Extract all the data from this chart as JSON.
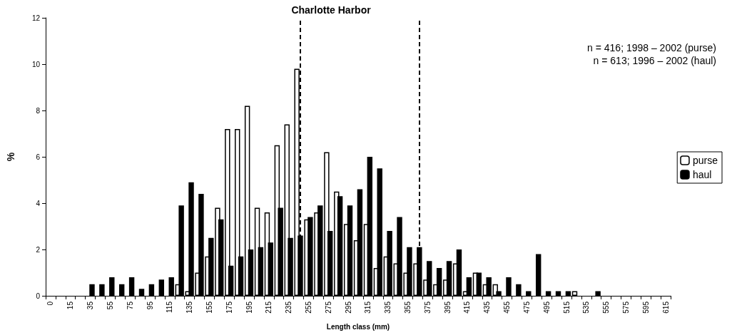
{
  "chart_data": {
    "type": "bar",
    "title": "Charlotte Harbor",
    "xlabel": "Length class (mm)",
    "ylabel": "%",
    "annotations": [
      "n = 416; 1998 – 2002 (purse)",
      "n = 613; 1996 – 2002 (haul)"
    ],
    "categories": [
      "0",
      null,
      "15",
      null,
      "35",
      null,
      "55",
      null,
      "75",
      null,
      "95",
      null,
      "115",
      null,
      "135",
      null,
      "155",
      null,
      "175",
      null,
      "195",
      null,
      "215",
      null,
      "235",
      null,
      "255",
      null,
      "275",
      null,
      "295",
      null,
      "315",
      null,
      "335",
      null,
      "355",
      null,
      "375",
      null,
      "395",
      null,
      "415",
      null,
      "435",
      null,
      "455",
      null,
      "475",
      null,
      "495",
      null,
      "515",
      null,
      "535",
      null,
      "555",
      null,
      "575",
      null,
      "595",
      null,
      "615"
    ],
    "series": [
      {
        "name": "purse",
        "color": "#ffffff",
        "values": [
          0,
          0,
          0,
          0,
          0,
          0,
          0,
          0,
          0,
          0,
          0,
          0,
          0,
          0.5,
          0.2,
          1.0,
          1.7,
          3.8,
          7.2,
          7.2,
          8.2,
          3.8,
          3.6,
          6.5,
          7.4,
          9.8,
          3.3,
          3.6,
          6.2,
          4.5,
          3.1,
          2.4,
          3.1,
          1.2,
          1.7,
          1.4,
          1.0,
          1.4,
          0.7,
          0.5,
          0.7,
          1.4,
          0.2,
          1.0,
          0.5,
          0.5,
          0,
          0,
          0,
          0,
          0,
          0,
          0,
          0.2,
          0,
          0,
          0,
          0,
          0,
          0,
          0,
          0,
          0
        ]
      },
      {
        "name": "haul",
        "color": "#000000",
        "values": [
          0,
          0,
          0,
          0,
          0.5,
          0.5,
          0.8,
          0.5,
          0.8,
          0.3,
          0.5,
          0.7,
          0.8,
          3.9,
          4.9,
          4.4,
          2.5,
          3.3,
          1.3,
          1.7,
          2.0,
          2.1,
          2.3,
          3.8,
          2.5,
          2.6,
          3.4,
          3.9,
          2.8,
          4.3,
          3.9,
          4.6,
          6.0,
          5.5,
          2.8,
          3.4,
          2.1,
          2.1,
          1.5,
          1.2,
          1.5,
          2.0,
          0.8,
          1.0,
          0.8,
          0.2,
          0.8,
          0.5,
          0.2,
          1.8,
          0.2,
          0.2,
          0.2,
          0,
          0,
          0.2,
          0,
          0,
          0,
          0,
          0,
          0,
          0
        ]
      }
    ],
    "ylim": [
      0,
      12
    ],
    "yticks": [
      0,
      2,
      4,
      6,
      8,
      10,
      12
    ],
    "grid": false,
    "legend": "right"
  }
}
